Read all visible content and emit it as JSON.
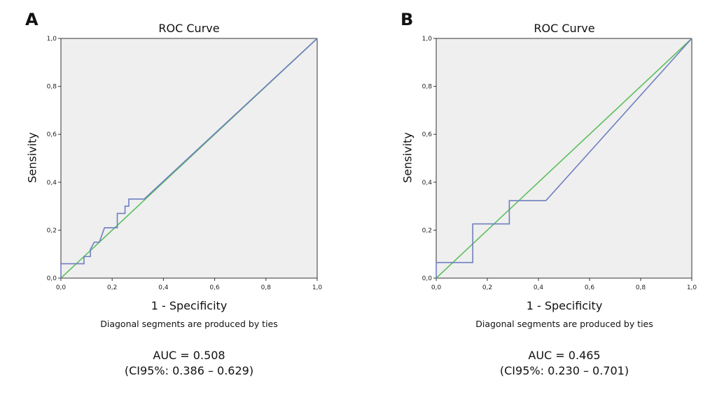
{
  "figure": {
    "panels": [
      {
        "letter": "A",
        "auc_text": "AUC = 0.508",
        "ci_text": "(CI95%: 0.386 – 0.629)",
        "footnote": "Diagonal segments are produced by ties"
      },
      {
        "letter": "B",
        "auc_text": "AUC = 0.465",
        "ci_text": "(CI95%: 0.230 – 0.701)",
        "footnote": "Diagonal segments are produced by ties"
      }
    ]
  },
  "chart_data": [
    {
      "type": "line",
      "title": "ROC Curve",
      "xlabel": "1 - Specificity",
      "ylabel": "Sensivity",
      "xlim": [
        0,
        1
      ],
      "ylim": [
        0,
        1
      ],
      "x_ticks": [
        "0,0",
        "0,2",
        "0,4",
        "0,6",
        "0,8",
        "1,0"
      ],
      "y_ticks": [
        "0,0",
        "0,2",
        "0,4",
        "0,6",
        "0,8",
        "1,0"
      ],
      "grid": false,
      "plot_background": "#efefef",
      "series": [
        {
          "color": "#6f7fc0",
          "points": [
            [
              0,
              0
            ],
            [
              0,
              0.06
            ],
            [
              0.09,
              0.06
            ],
            [
              0.09,
              0.09
            ],
            [
              0.115,
              0.09
            ],
            [
              0.115,
              0.12
            ],
            [
              0.13,
              0.15
            ],
            [
              0.15,
              0.15
            ],
            [
              0.17,
              0.21
            ],
            [
              0.22,
              0.21
            ],
            [
              0.22,
              0.27
            ],
            [
              0.25,
              0.27
            ],
            [
              0.25,
              0.3
            ],
            [
              0.265,
              0.3
            ],
            [
              0.265,
              0.33
            ],
            [
              0.325,
              0.33
            ],
            [
              1,
              1
            ]
          ]
        },
        {
          "color": "#5cbf5c",
          "points": [
            [
              0,
              0
            ],
            [
              1,
              1
            ]
          ]
        }
      ]
    },
    {
      "type": "line",
      "title": "ROC Curve",
      "xlabel": "1 - Specificity",
      "ylabel": "Sensivity",
      "xlim": [
        0,
        1
      ],
      "ylim": [
        0,
        1
      ],
      "x_ticks": [
        "0,0",
        "0,2",
        "0,4",
        "0,6",
        "0,8",
        "1,0"
      ],
      "y_ticks": [
        "0,0",
        "0,2",
        "0,4",
        "0,6",
        "0,8",
        "1,0"
      ],
      "grid": false,
      "plot_background": "#efefef",
      "series": [
        {
          "color": "#6f7fc0",
          "points": [
            [
              0,
              0
            ],
            [
              0,
              0.065
            ],
            [
              0.143,
              0.065
            ],
            [
              0.143,
              0.226
            ],
            [
              0.286,
              0.226
            ],
            [
              0.286,
              0.323
            ],
            [
              0.429,
              0.323
            ],
            [
              1,
              1
            ]
          ]
        },
        {
          "color": "#5cbf5c",
          "points": [
            [
              0,
              0
            ],
            [
              1,
              1
            ]
          ]
        }
      ]
    }
  ]
}
